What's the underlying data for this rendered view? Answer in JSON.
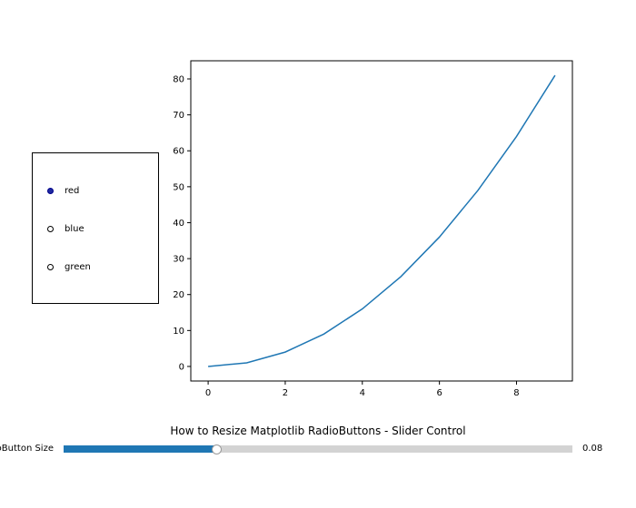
{
  "chart_data": {
    "type": "line",
    "title": "",
    "xlabel": "",
    "ylabel": "",
    "x": [
      0,
      1,
      2,
      3,
      4,
      5,
      6,
      7,
      8,
      9
    ],
    "series": [
      {
        "values": [
          0,
          1,
          4,
          9,
          16,
          25,
          36,
          49,
          64,
          81
        ],
        "color": "#1f77b4"
      }
    ],
    "xlim": [
      -0.45,
      9.45
    ],
    "ylim": [
      -4.05,
      85.05
    ],
    "xticks": [
      0,
      2,
      4,
      6,
      8
    ],
    "yticks": [
      0,
      10,
      20,
      30,
      40,
      50,
      60,
      70,
      80
    ],
    "grid": false
  },
  "radio": {
    "options": [
      "red",
      "blue",
      "green"
    ],
    "selected_index": 0
  },
  "figure_title": "How to Resize Matplotlib RadioButtons - Slider Control",
  "slider": {
    "label": "RadioButton Size",
    "value_text": "0.08",
    "fraction": 0.3,
    "fill_color": "#1f77b4"
  }
}
